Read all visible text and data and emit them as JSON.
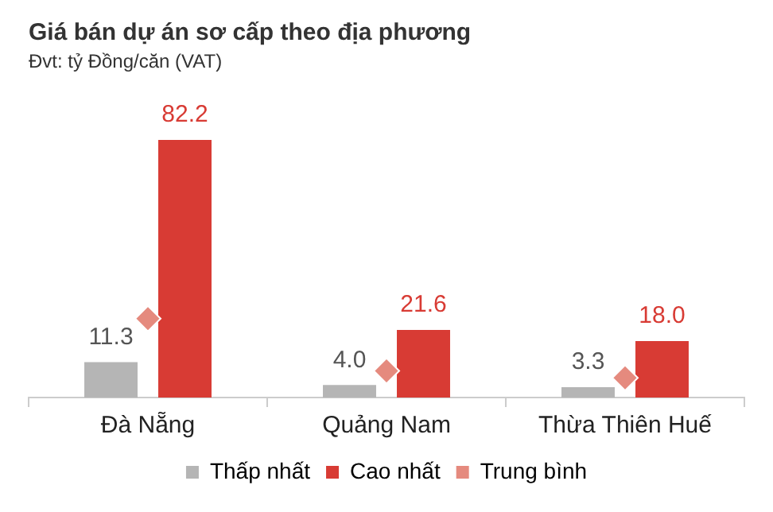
{
  "chart_data": {
    "type": "bar",
    "title": "Giá bán dự án sơ cấp theo địa phương",
    "subtitle": "Đvt: tỷ Đồng/căn (VAT)",
    "categories": [
      "Đà Nẵng",
      "Quảng Nam",
      "Thừa Thiên Huế"
    ],
    "series": [
      {
        "name": "Thấp nhất",
        "color": "#b5b5b5",
        "values": [
          11.3,
          4.0,
          3.3
        ],
        "value_labels": [
          "11.3",
          "4.0",
          "3.3"
        ]
      },
      {
        "name": "Cao nhất",
        "color": "#d83b34",
        "values": [
          82.2,
          21.6,
          18.0
        ],
        "value_labels": [
          "82.2",
          "21.6",
          "18.0"
        ]
      },
      {
        "name": "Trung bình",
        "type": "scatter",
        "marker": "diamond",
        "color": "#e58a7e",
        "values": [
          25.2,
          8.5,
          6.3
        ],
        "x": [
          "Đà Nẵng",
          "Quảng Nam",
          "Thừa Thiên Huế"
        ]
      }
    ],
    "legend": "bottom",
    "grid": false
  }
}
